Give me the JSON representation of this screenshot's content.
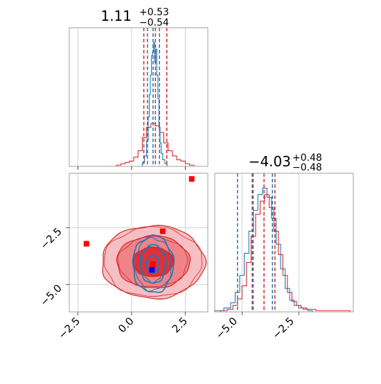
{
  "colors": {
    "blue": "#1f77b4",
    "red": "#d62728",
    "marker_red": "#ff0000",
    "marker_blue": "#0000ff"
  },
  "chart_data": [
    {
      "type": "histogram",
      "panel": "param-1-marginal",
      "title": {
        "main": "1.11",
        "sup": "+0.53",
        "sub": "−0.54"
      },
      "xlim": [
        -2.9,
        3.55
      ],
      "grid": true,
      "series": [
        {
          "color": "#1f77b4",
          "centers": [
            0.55,
            0.65,
            0.75,
            0.8,
            0.85,
            0.9,
            0.95,
            1.0,
            1.05,
            1.1,
            1.15,
            1.2,
            1.25,
            1.3,
            1.35,
            1.4,
            1.5,
            1.6
          ],
          "counts": [
            0.03,
            0.08,
            0.2,
            0.38,
            0.55,
            0.7,
            0.85,
            0.88,
            0.95,
            0.8,
            0.9,
            0.7,
            0.52,
            0.3,
            0.18,
            0.1,
            0.05,
            0.02
          ]
        },
        {
          "color": "#d62728",
          "centers": [
            -0.6,
            -0.4,
            -0.2,
            0.0,
            0.2,
            0.4,
            0.6,
            0.8,
            1.0,
            1.2,
            1.4,
            1.6,
            1.8,
            2.0,
            2.2,
            2.4,
            2.6,
            2.8
          ],
          "counts": [
            0.01,
            0.02,
            0.03,
            0.04,
            0.07,
            0.12,
            0.22,
            0.3,
            0.33,
            0.31,
            0.26,
            0.18,
            0.12,
            0.08,
            0.05,
            0.04,
            0.02,
            0.01
          ]
        }
      ],
      "quantile_lines": [
        {
          "color": "#1f77b4",
          "x": [
            0.74,
            1.0,
            1.3
          ]
        },
        {
          "color": "#d62728",
          "x": [
            0.57,
            1.11,
            1.64
          ]
        }
      ]
    },
    {
      "type": "contour",
      "panel": "joint-2d",
      "xlim": [
        -2.9,
        3.55
      ],
      "ylim": [
        -6.2,
        -0.1
      ],
      "xticks": [
        "−2.5",
        "0.0",
        "2.5"
      ],
      "yticks": [
        "−2.5",
        "−5.0"
      ],
      "grid": true,
      "red_contours": {
        "center": [
          1.0,
          -4.0
        ],
        "rx": [
          2.4,
          1.7,
          0.95
        ],
        "ry": [
          1.6,
          1.15,
          0.65
        ]
      },
      "blue_contours": {
        "center": [
          1.0,
          -4.1
        ],
        "rx": [
          0.95,
          0.6,
          0.3
        ],
        "ry": [
          1.25,
          0.85,
          0.4
        ]
      },
      "markers": [
        {
          "x": -2.1,
          "y": -3.2,
          "color": "#ff0000"
        },
        {
          "x": 2.8,
          "y": -0.35,
          "color": "#ff0000"
        },
        {
          "x": 1.45,
          "y": -2.65,
          "color": "#ff0000"
        },
        {
          "x": 1.0,
          "y": -4.1,
          "color": "#ff0000"
        },
        {
          "x": 0.95,
          "y": -4.35,
          "color": "#0000ff"
        }
      ]
    },
    {
      "type": "histogram",
      "panel": "param-2-marginal",
      "title": {
        "main": "−4.03",
        "sup": "+0.48",
        "sub": "−0.48"
      },
      "xlim": [
        -6.2,
        -0.1
      ],
      "xticks": [
        "−5.0",
        "−2.5"
      ],
      "grid": true,
      "series": [
        {
          "color": "#1f77b4",
          "centers": [
            -6.0,
            -5.6,
            -5.4,
            -5.2,
            -5.0,
            -4.8,
            -4.6,
            -4.4,
            -4.2,
            -4.0,
            -3.8,
            -3.6,
            -3.4,
            -3.2,
            -3.0,
            -2.8,
            -2.6,
            -2.4,
            -2.2,
            -2.0
          ],
          "counts": [
            0.01,
            0.03,
            0.07,
            0.15,
            0.28,
            0.45,
            0.62,
            0.78,
            0.9,
            0.95,
            0.88,
            0.72,
            0.52,
            0.33,
            0.18,
            0.09,
            0.05,
            0.03,
            0.02,
            0.01
          ]
        },
        {
          "color": "#d62728",
          "centers": [
            -5.8,
            -5.5,
            -5.3,
            -5.1,
            -4.9,
            -4.7,
            -4.5,
            -4.3,
            -4.1,
            -3.9,
            -3.7,
            -3.5,
            -3.3,
            -3.1,
            -2.9,
            -2.7,
            -2.5,
            -2.3,
            -2.0,
            -1.5,
            -1.0,
            -0.5
          ],
          "counts": [
            0.01,
            0.02,
            0.05,
            0.1,
            0.2,
            0.38,
            0.58,
            0.75,
            0.85,
            0.9,
            0.8,
            0.62,
            0.44,
            0.28,
            0.15,
            0.08,
            0.05,
            0.03,
            0.02,
            0.01,
            0.01,
            0.01
          ]
        }
      ],
      "quantile_lines": [
        {
          "color": "#1f77b4",
          "x": [
            -5.2,
            -4.55,
            -3.66
          ]
        },
        {
          "color": "#d62728",
          "x": [
            -4.51,
            -4.03,
            -3.55
          ]
        }
      ]
    }
  ]
}
